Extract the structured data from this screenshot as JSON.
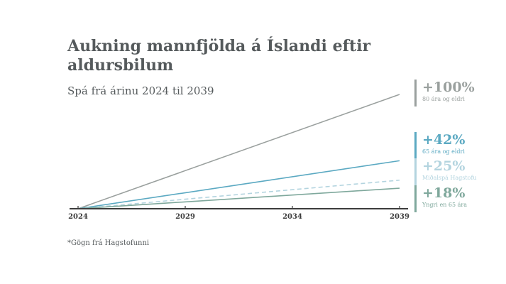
{
  "title": "Aukning mannfjölda á Íslandi eftir aldursbilum",
  "subtitle": "Spá frá árinu 2024 til 2039",
  "footnote": "*Gögn frá Hagstofunni",
  "chart_data": {
    "type": "line",
    "x": [
      2024,
      2039
    ],
    "xticks": [
      "2024",
      "2029",
      "2034",
      "2039"
    ],
    "ylim": [
      0,
      100
    ],
    "series": [
      {
        "name": "80 ára og eldri",
        "label": "+100%",
        "values": [
          0,
          100
        ],
        "color": "#9aa09e",
        "dash": false
      },
      {
        "name": "65 ára og eldri",
        "label": "+42%",
        "values": [
          0,
          42
        ],
        "color": "#5ba9c2",
        "dash": false
      },
      {
        "name": "Miðalspá Hagstofu",
        "label": "+25%",
        "values": [
          0,
          25
        ],
        "color": "#b3d4df",
        "dash": true
      },
      {
        "name": "Yngri en 65 ára",
        "label": "+18%",
        "values": [
          0,
          18
        ],
        "color": "#7fa89c",
        "dash": false
      }
    ]
  }
}
